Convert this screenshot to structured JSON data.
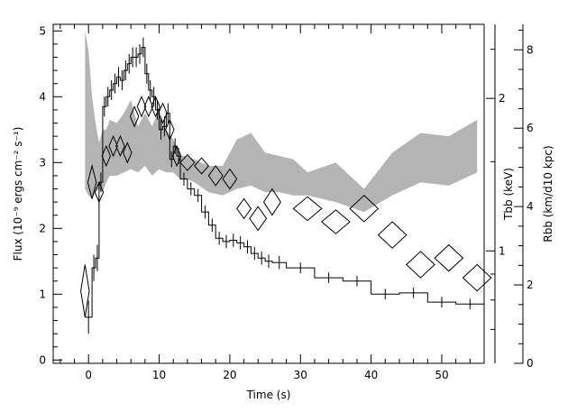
{
  "chart_data": {
    "type": "line",
    "xlabel": "Time (s)",
    "ylabel_left": "Flux (10⁻⁹ ergs cm⁻² s⁻¹)",
    "ylabel_right_T": "Tbb (keV)",
    "ylabel_right_R": "Rbb (km/d10 kpc)",
    "xlim": [
      -5,
      56
    ],
    "ylim_left": [
      -0.05,
      5.1
    ],
    "x_ticks": [
      "0",
      "10",
      "20",
      "30",
      "40",
      "50"
    ],
    "y_ticks_left": [
      "0",
      "1",
      "2",
      "3",
      "4",
      "5"
    ],
    "T_axis": {
      "scale": "log",
      "ticks": [
        "1",
        "2"
      ]
    },
    "R_axis": {
      "ticks": [
        "0",
        "2",
        "4",
        "6",
        "8"
      ]
    },
    "grid": false,
    "flux": {
      "name": "Flux",
      "style": "histogram",
      "x": [
        -0.5,
        0.5,
        1.0,
        1.5,
        2.0,
        2.5,
        3.0,
        3.5,
        4.0,
        4.5,
        5.0,
        5.5,
        6.0,
        6.5,
        7.0,
        7.5,
        8.0,
        8.5,
        9.0,
        9.5,
        10.0,
        10.5,
        11.0,
        11.5,
        12.0,
        12.5,
        13.0,
        14.0,
        15.0,
        16.0,
        17.0,
        18.0,
        19.0,
        20.0,
        21.0,
        22.0,
        23.0,
        24.0,
        25.0,
        26.0,
        28.0,
        32.0,
        36.0,
        40.0,
        44.0,
        48.0,
        52.0,
        56.0
      ],
      "y": [
        0.65,
        1.4,
        1.55,
        2.7,
        3.85,
        4.0,
        4.1,
        4.2,
        4.3,
        4.25,
        4.4,
        4.5,
        4.6,
        4.6,
        4.65,
        4.75,
        4.35,
        4.1,
        4.0,
        3.8,
        3.5,
        3.55,
        3.75,
        3.05,
        3.25,
        3.1,
        2.75,
        2.6,
        2.5,
        2.25,
        2.05,
        1.85,
        1.8,
        1.82,
        1.78,
        1.72,
        1.62,
        1.55,
        1.5,
        1.48,
        1.4,
        1.25,
        1.2,
        1.0,
        1.02,
        0.88,
        0.85,
        0.8
      ],
      "err": [
        0.25,
        0.2,
        0.2,
        0.15,
        0.15,
        0.15,
        0.15,
        0.15,
        0.15,
        0.15,
        0.15,
        0.15,
        0.15,
        0.15,
        0.15,
        0.15,
        0.15,
        0.15,
        0.15,
        0.15,
        0.15,
        0.15,
        0.15,
        0.12,
        0.12,
        0.12,
        0.1,
        0.1,
        0.1,
        0.1,
        0.1,
        0.1,
        0.1,
        0.1,
        0.1,
        0.1,
        0.1,
        0.1,
        0.1,
        0.1,
        0.08,
        0.08,
        0.08,
        0.08,
        0.08,
        0.08,
        0.08,
        0.08
      ]
    },
    "temperature_band": {
      "name": "Tbb band",
      "style": "shaded band",
      "x": [
        -0.5,
        0.0,
        0.5,
        1.0,
        1.5,
        2.0,
        2.5,
        3.0,
        4.0,
        5.0,
        6.0,
        7.0,
        8.0,
        9.0,
        10.0,
        11.0,
        12.0,
        13.0,
        14.0,
        15.0,
        17.0,
        19.0,
        21.0,
        23.0,
        25.0,
        27.0,
        29.0,
        31.0,
        35.0,
        39.0,
        43.0,
        47.0,
        51.0,
        55.0
      ],
      "y_high": [
        5.0,
        4.7,
        4.0,
        3.6,
        3.3,
        3.5,
        3.5,
        3.65,
        3.6,
        3.75,
        3.95,
        3.55,
        3.75,
        3.55,
        3.8,
        3.5,
        3.35,
        3.1,
        3.1,
        3.05,
        2.95,
        2.95,
        3.35,
        3.45,
        3.15,
        3.1,
        3.05,
        2.85,
        3.0,
        2.6,
        3.15,
        3.45,
        3.4,
        3.65
      ],
      "y_low": [
        2.6,
        2.5,
        2.45,
        2.55,
        2.6,
        2.55,
        2.7,
        2.8,
        2.8,
        2.85,
        2.9,
        2.85,
        2.95,
        2.8,
        2.9,
        2.85,
        2.85,
        2.75,
        2.75,
        2.7,
        2.55,
        2.5,
        2.6,
        2.65,
        2.55,
        2.55,
        2.5,
        2.5,
        2.4,
        2.25,
        2.5,
        2.7,
        2.65,
        2.85
      ]
    },
    "radius_points": {
      "name": "Rbb",
      "style": "open diamonds",
      "x": [
        -0.5,
        0.5,
        1.5,
        2.5,
        3.5,
        4.5,
        5.5,
        6.5,
        7.5,
        8.5,
        9.5,
        10.5,
        11.5,
        12.5,
        14.0,
        16.0,
        18.0,
        20.0,
        22.0,
        24.0,
        26.0,
        31.0,
        35.0,
        39.0,
        43.0,
        47.0,
        51.0,
        55.0
      ],
      "y": [
        1.05,
        2.7,
        2.55,
        3.1,
        3.25,
        3.25,
        3.15,
        3.7,
        3.85,
        3.85,
        3.85,
        3.75,
        3.5,
        3.1,
        3.0,
        2.95,
        2.8,
        2.75,
        2.3,
        2.15,
        2.4,
        2.3,
        2.1,
        2.3,
        1.9,
        1.45,
        1.55,
        1.25
      ],
      "dx": [
        0.6,
        0.6,
        0.6,
        0.6,
        0.6,
        0.6,
        0.6,
        0.6,
        0.6,
        0.6,
        0.6,
        0.6,
        0.6,
        0.6,
        1.0,
        1.0,
        1.0,
        1.0,
        1.0,
        1.2,
        1.2,
        2.0,
        2.0,
        2.0,
        2.0,
        2.0,
        2.0,
        2.0
      ],
      "dy": [
        0.4,
        0.25,
        0.15,
        0.15,
        0.15,
        0.15,
        0.15,
        0.15,
        0.15,
        0.15,
        0.15,
        0.15,
        0.15,
        0.15,
        0.12,
        0.12,
        0.15,
        0.15,
        0.15,
        0.18,
        0.2,
        0.18,
        0.18,
        0.2,
        0.2,
        0.2,
        0.2,
        0.2
      ]
    }
  }
}
